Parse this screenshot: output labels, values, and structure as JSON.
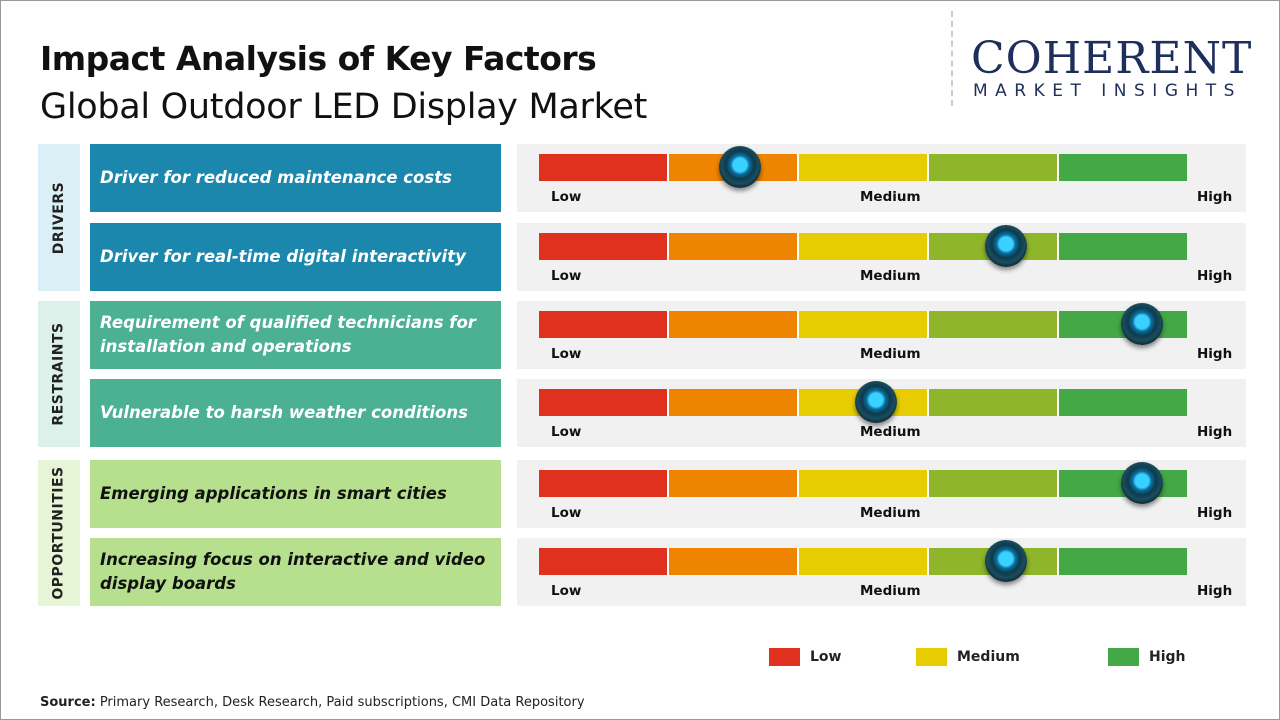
{
  "title": "Impact Analysis of Key Factors",
  "subtitle": "Global Outdoor LED Display Market",
  "logo": {
    "main": "COHERENT",
    "sub": "MARKET INSIGHTS"
  },
  "scale": {
    "low": "Low",
    "medium": "Medium",
    "high": "High",
    "colors": [
      "#e0301e",
      "#ee8400",
      "#e6cc00",
      "#8fb52a",
      "#44a846"
    ]
  },
  "categories": [
    {
      "name": "DRIVERS",
      "bg": "#dbeff7",
      "color": "#1b87ac"
    },
    {
      "name": "RESTRAINTS",
      "bg": "#ddf1eb",
      "color": "#4cb192"
    },
    {
      "name": "OPPORTUNITIES",
      "bg": "#e6f5d6",
      "color": "#b6e08d"
    }
  ],
  "factors": [
    {
      "label": "Driver for reduced maintenance costs",
      "category": 0,
      "level": 0.31
    },
    {
      "label": "Driver for real-time digital interactivity",
      "category": 0,
      "level": 0.72
    },
    {
      "label": "Requirement of qualified technicians for installation and operations",
      "category": 1,
      "level": 0.93
    },
    {
      "label": "Vulnerable to harsh weather conditions",
      "category": 1,
      "level": 0.52
    },
    {
      "label": "Emerging applications in smart cities",
      "category": 2,
      "level": 0.93
    },
    {
      "label": "Increasing focus on interactive and video display boards",
      "category": 2,
      "level": 0.72
    }
  ],
  "legend": [
    {
      "label": "Low",
      "color": "#e0301e"
    },
    {
      "label": "Medium",
      "color": "#e6cc00"
    },
    {
      "label": "High",
      "color": "#44a846"
    }
  ],
  "source": {
    "label": "Source:",
    "text": " Primary Research, Desk Research, Paid subscriptions, CMI Data Repository"
  }
}
